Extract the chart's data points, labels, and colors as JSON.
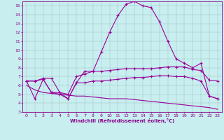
{
  "xlabel": "Windchill (Refroidissement éolien,°C)",
  "xlim": [
    -0.5,
    23.5
  ],
  "ylim": [
    3,
    15.5
  ],
  "xticks": [
    0,
    1,
    2,
    3,
    4,
    5,
    6,
    7,
    8,
    9,
    10,
    11,
    12,
    13,
    14,
    15,
    16,
    17,
    18,
    19,
    20,
    21,
    22,
    23
  ],
  "yticks": [
    3,
    4,
    5,
    6,
    7,
    8,
    9,
    10,
    11,
    12,
    13,
    14,
    15
  ],
  "bg_color": "#c8eef0",
  "line_color": "#990099",
  "series1_x": [
    0,
    1,
    2,
    3,
    4,
    5,
    6,
    7,
    8,
    9,
    10,
    11,
    12,
    13,
    14,
    15,
    16,
    17,
    18,
    19,
    20,
    21,
    22,
    23
  ],
  "series1_y": [
    6.5,
    4.5,
    6.7,
    5.2,
    5.2,
    4.5,
    6.3,
    7.6,
    7.6,
    9.8,
    12.0,
    13.9,
    15.2,
    15.5,
    15.0,
    14.8,
    13.2,
    11.0,
    9.0,
    8.5,
    8.0,
    8.5,
    4.8,
    4.5
  ],
  "series2_x": [
    0,
    1,
    2,
    3,
    4,
    5,
    6,
    7,
    8,
    9,
    10,
    11,
    12,
    13,
    14,
    15,
    16,
    17,
    18,
    19,
    20,
    21,
    22,
    23
  ],
  "series2_y": [
    6.5,
    6.5,
    6.8,
    6.8,
    5.2,
    5.0,
    7.0,
    7.3,
    7.6,
    7.6,
    7.7,
    7.8,
    7.9,
    7.9,
    7.9,
    7.9,
    8.0,
    8.1,
    8.1,
    8.1,
    7.8,
    7.7,
    6.6,
    6.5
  ],
  "series3_x": [
    0,
    1,
    2,
    3,
    4,
    5,
    6,
    7,
    8,
    9,
    10,
    11,
    12,
    13,
    14,
    15,
    16,
    17,
    18,
    19,
    20,
    21,
    22,
    23
  ],
  "series3_y": [
    6.5,
    6.5,
    6.7,
    5.2,
    5.0,
    4.5,
    6.3,
    6.3,
    6.5,
    6.5,
    6.6,
    6.7,
    6.8,
    6.9,
    6.9,
    7.0,
    7.1,
    7.1,
    7.0,
    7.0,
    6.8,
    6.5,
    4.8,
    4.5
  ],
  "series4_x": [
    0,
    1,
    2,
    3,
    4,
    5,
    6,
    7,
    8,
    9,
    10,
    11,
    12,
    13,
    14,
    15,
    16,
    17,
    18,
    19,
    20,
    21,
    22,
    23
  ],
  "series4_y": [
    6.0,
    5.5,
    5.2,
    5.1,
    5.0,
    4.9,
    4.8,
    4.8,
    4.7,
    4.6,
    4.5,
    4.5,
    4.5,
    4.4,
    4.3,
    4.2,
    4.1,
    4.0,
    3.9,
    3.8,
    3.7,
    3.6,
    3.5,
    3.3
  ]
}
